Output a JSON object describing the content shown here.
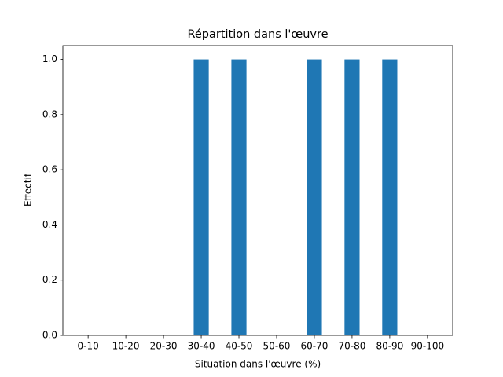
{
  "chart_data": {
    "type": "bar",
    "title": "Répartition dans l'œuvre",
    "x_label": "Situation dans l'œuvre (%)",
    "y_label": "Effectif",
    "categories": [
      "0-10",
      "10-20",
      "20-30",
      "30-40",
      "40-50",
      "50-60",
      "60-70",
      "70-80",
      "80-90",
      "90-100"
    ],
    "values": [
      0,
      0,
      0,
      1,
      1,
      0,
      1,
      1,
      1,
      0
    ],
    "color": "#1f77b4",
    "ylim": [
      0,
      1.05
    ],
    "yticks": [
      {
        "value": 0,
        "label": "0.0"
      },
      {
        "value": 0.2,
        "label": "0.2"
      },
      {
        "value": 0.4,
        "label": "0.4"
      },
      {
        "value": 0.6,
        "label": "0.6"
      },
      {
        "value": 0.8,
        "label": "0.8"
      },
      {
        "value": 1,
        "label": "1.0"
      }
    ],
    "grid": false
  }
}
